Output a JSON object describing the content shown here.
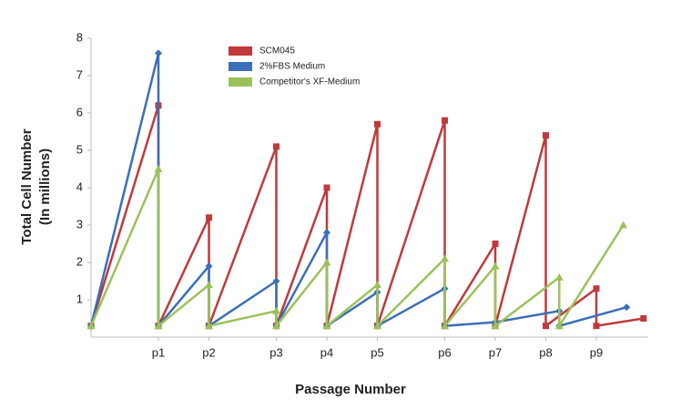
{
  "chart_data": {
    "type": "line",
    "ylabel": [
      "Total Cell Number",
      "(In millions)"
    ],
    "xlabel": "Passage Number",
    "xlim": [
      0,
      33
    ],
    "xticks": [
      {
        "value": 4,
        "label": "p1"
      },
      {
        "value": 7,
        "label": "p2"
      },
      {
        "value": 11,
        "label": "p3"
      },
      {
        "value": 14,
        "label": "p4"
      },
      {
        "value": 17,
        "label": "p5"
      },
      {
        "value": 21,
        "label": "p6"
      },
      {
        "value": 24,
        "label": "p7"
      },
      {
        "value": 27,
        "label": "p8"
      },
      {
        "value": 30,
        "label": "p9"
      }
    ],
    "ylim": [
      0,
      8
    ],
    "yticks": [
      1,
      2,
      3,
      4,
      5,
      6,
      7,
      8
    ],
    "legend": "top",
    "series": [
      {
        "name": "SCM045",
        "color": "#c0393b",
        "marker": "square",
        "x": [
          0,
          4,
          4,
          7,
          7,
          11,
          11,
          14,
          14,
          17,
          17,
          21,
          21,
          24,
          24,
          27,
          27,
          30,
          30,
          32.8
        ],
        "values": [
          0.3,
          6.2,
          0.3,
          3.2,
          0.3,
          5.1,
          0.3,
          4.0,
          0.3,
          5.7,
          0.3,
          5.8,
          0.3,
          2.5,
          0.3,
          5.4,
          0.3,
          1.3,
          0.3,
          0.5
        ]
      },
      {
        "name": "2%FBS Medium",
        "color": "#3b6fb6",
        "marker": "diamond",
        "x": [
          0,
          4,
          4,
          7,
          7,
          11,
          11,
          14,
          14,
          17,
          17,
          21,
          21,
          24,
          27.8,
          27.8,
          31.8
        ],
        "values": [
          0.3,
          7.6,
          0.3,
          1.9,
          0.3,
          1.5,
          0.3,
          2.8,
          0.3,
          1.2,
          0.3,
          1.3,
          0.3,
          0.4,
          0.7,
          0.3,
          0.8
        ]
      },
      {
        "name": "Competitor's XF-Medium",
        "color": "#9bc25a",
        "marker": "triangle",
        "x": [
          0,
          4,
          4,
          7,
          7,
          11,
          11,
          14,
          14,
          17,
          17,
          21,
          21,
          24,
          24,
          27.8,
          27.8,
          31.6
        ],
        "values": [
          0.3,
          4.5,
          0.3,
          1.4,
          0.3,
          0.7,
          0.3,
          2.0,
          0.3,
          1.4,
          0.3,
          2.1,
          0.3,
          1.9,
          0.3,
          1.6,
          0.3,
          3.0
        ]
      }
    ]
  }
}
